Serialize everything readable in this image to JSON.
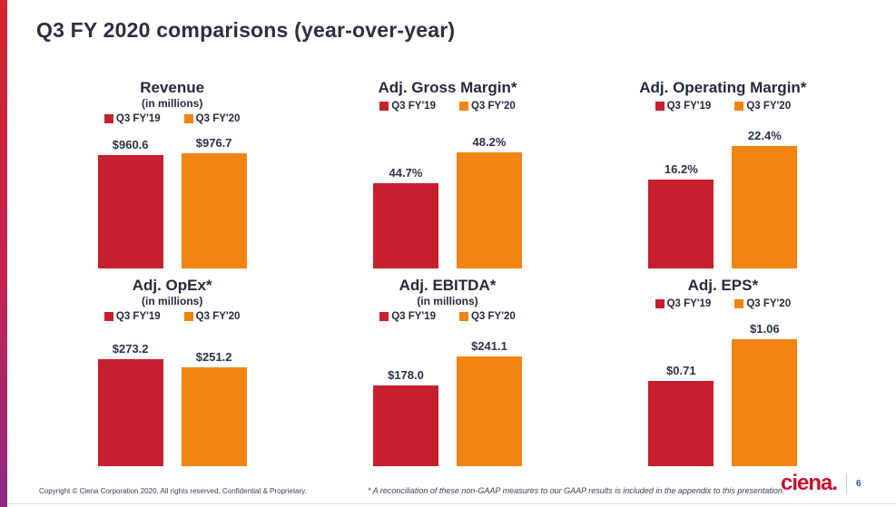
{
  "slide": {
    "title": "Q3 FY 2020 comparisons (year-over-year)",
    "footer_copyright": "Copyright © Ciena Corporation 2020. All rights reserved. Confidential & Proprietary.",
    "footer_note": "* A reconciliation of these non-GAAP measures to our GAAP results is included in the appendix to this presentation.",
    "logo_text": "ciena.",
    "page_number": "6"
  },
  "colors": {
    "fy19_red": "#c81f2e",
    "fy20_orange": "#f28411",
    "heading_navy": "#262b39",
    "accent_gradient_top": "#d22630",
    "accent_gradient_bottom": "#8e2a84",
    "logo_red": "#c8102e",
    "page_number_blue": "#33518e"
  },
  "chart_data": [
    {
      "type": "bar",
      "title": "Revenue",
      "subtitle": "(in millions)",
      "categories": [
        "Q3 FY'19",
        "Q3 FY'20"
      ],
      "values": [
        960.6,
        976.7
      ],
      "value_labels": [
        "$960.6",
        "$976.7"
      ],
      "ylim": [
        0,
        1000
      ],
      "legend_position": "top",
      "grid": false
    },
    {
      "type": "bar",
      "title": "Adj. Gross Margin*",
      "subtitle": "",
      "categories": [
        "Q3 FY'19",
        "Q3 FY'20"
      ],
      "values": [
        44.7,
        48.2
      ],
      "value_labels": [
        "44.7%",
        "48.2%"
      ],
      "ylim": [
        35,
        50
      ],
      "legend_position": "top",
      "grid": false
    },
    {
      "type": "bar",
      "title": "Adj. Operating Margin*",
      "subtitle": "",
      "categories": [
        "Q3 FY'19",
        "Q3 FY'20"
      ],
      "values": [
        16.2,
        22.4
      ],
      "value_labels": [
        "16.2%",
        "22.4%"
      ],
      "ylim": [
        0,
        24
      ],
      "legend_position": "top",
      "grid": false
    },
    {
      "type": "bar",
      "title": "Adj. OpEx*",
      "subtitle": "(in millions)",
      "categories": [
        "Q3 FY'19",
        "Q3 FY'20"
      ],
      "values": [
        273.2,
        251.2
      ],
      "value_labels": [
        "$273.2",
        "$251.2"
      ],
      "ylim": [
        0,
        300
      ],
      "legend_position": "top",
      "grid": false
    },
    {
      "type": "bar",
      "title": "Adj. EBITDA*",
      "subtitle": "(in millions)",
      "categories": [
        "Q3 FY'19",
        "Q3 FY'20"
      ],
      "values": [
        178.0,
        241.1
      ],
      "value_labels": [
        "$178.0",
        "$241.1"
      ],
      "ylim": [
        0,
        260
      ],
      "legend_position": "top",
      "grid": false
    },
    {
      "type": "bar",
      "title": "Adj. EPS*",
      "subtitle": "",
      "categories": [
        "Q3 FY'19",
        "Q3 FY'20"
      ],
      "values": [
        0.71,
        1.06
      ],
      "value_labels": [
        "$0.71",
        "$1.06"
      ],
      "ylim": [
        0,
        1.1
      ],
      "legend_position": "top",
      "grid": false
    }
  ]
}
